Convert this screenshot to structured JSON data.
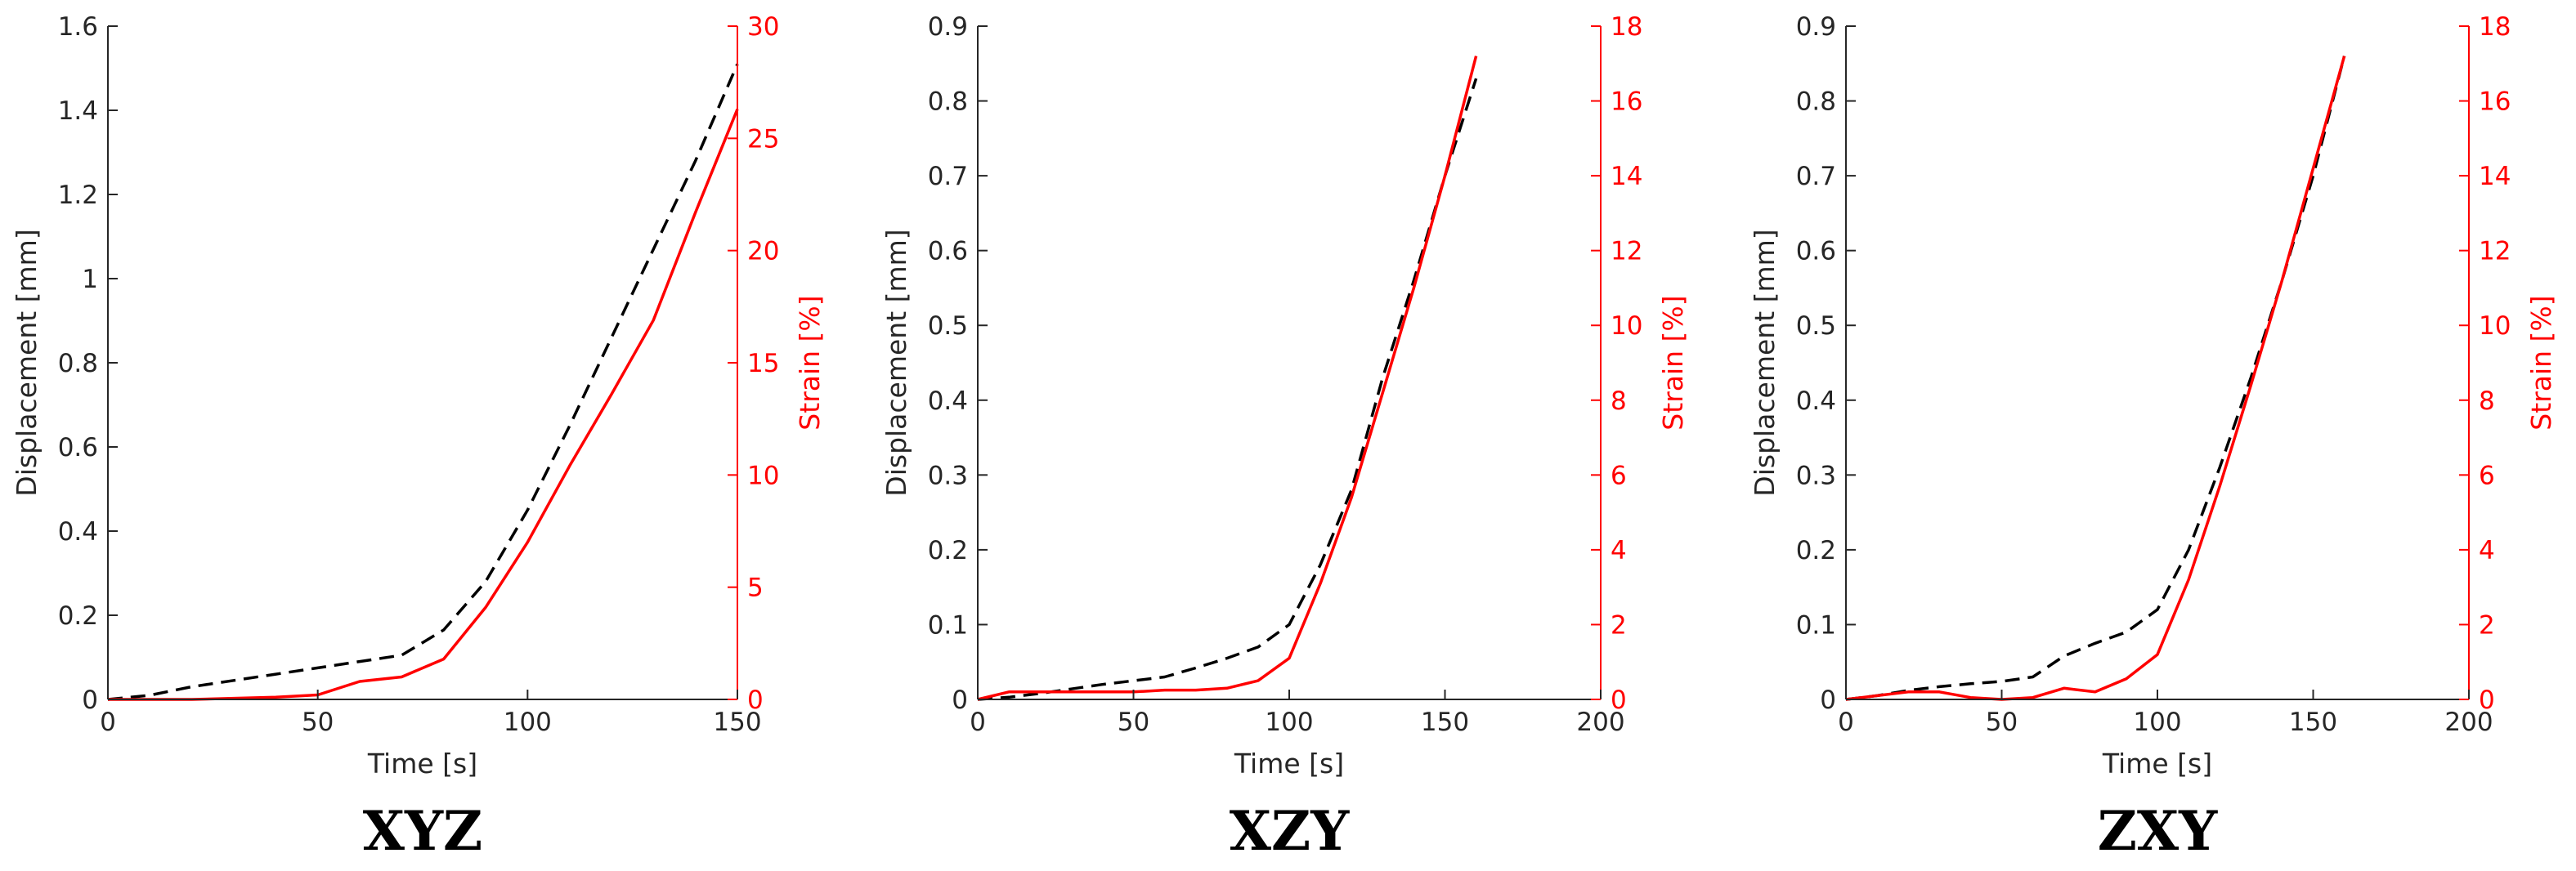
{
  "colors": {
    "displacement": "#000000",
    "strain": "#ff0000",
    "axis_left": "#262626",
    "axis_right": "#ff0000"
  },
  "chart_data": [
    {
      "type": "line",
      "title": "XYZ",
      "xlabel": "Time [s]",
      "ylabel_left": "Displacement [mm]",
      "ylabel_right": "Strain [%]",
      "xlim": [
        0,
        150
      ],
      "ylim_left": [
        0,
        1.6
      ],
      "ylim_right": [
        0,
        30
      ],
      "x_ticks": [
        "0",
        "50",
        "100",
        "150"
      ],
      "y_left_ticks": [
        "0",
        "0.2",
        "0.4",
        "0.6",
        "0.8",
        "1",
        "1.2",
        "1.4",
        "1.6"
      ],
      "y_right_ticks": [
        "0",
        "5",
        "10",
        "15",
        "20",
        "25",
        "30"
      ],
      "grid": false,
      "series": [
        {
          "axis": "left",
          "style": "dashed",
          "color": "#000000",
          "x": [
            0,
            10,
            20,
            30,
            40,
            50,
            60,
            70,
            80,
            90,
            100,
            110,
            120,
            130,
            140,
            150
          ],
          "y": [
            0,
            0.01,
            0.03,
            0.045,
            0.06,
            0.075,
            0.09,
            0.105,
            0.165,
            0.28,
            0.45,
            0.65,
            0.86,
            1.07,
            1.28,
            1.51
          ]
        },
        {
          "axis": "right",
          "style": "solid",
          "color": "#ff0000",
          "x": [
            0,
            10,
            20,
            30,
            40,
            50,
            60,
            70,
            80,
            90,
            100,
            110,
            120,
            130,
            140,
            150
          ],
          "y": [
            0,
            0,
            0,
            0.05,
            0.1,
            0.2,
            0.8,
            1.0,
            1.8,
            4.1,
            7.0,
            10.4,
            13.6,
            16.9,
            21.7,
            26.3
          ]
        }
      ]
    },
    {
      "type": "line",
      "title": "XZY",
      "xlabel": "Time [s]",
      "ylabel_left": "Displacement [mm]",
      "ylabel_right": "Strain [%]",
      "xlim": [
        0,
        200
      ],
      "ylim_left": [
        0,
        0.9
      ],
      "ylim_right": [
        0,
        18
      ],
      "x_ticks": [
        "0",
        "50",
        "100",
        "150",
        "200"
      ],
      "y_left_ticks": [
        "0",
        "0.1",
        "0.2",
        "0.3",
        "0.4",
        "0.5",
        "0.6",
        "0.7",
        "0.8",
        "0.9"
      ],
      "y_right_ticks": [
        "0",
        "2",
        "4",
        "6",
        "8",
        "10",
        "12",
        "14",
        "16",
        "18"
      ],
      "grid": false,
      "series": [
        {
          "axis": "left",
          "style": "dashed",
          "color": "#000000",
          "x": [
            0,
            10,
            20,
            30,
            40,
            50,
            60,
            70,
            80,
            90,
            100,
            110,
            120,
            130,
            140,
            150,
            160
          ],
          "y": [
            0,
            0.003,
            0.008,
            0.014,
            0.02,
            0.025,
            0.03,
            0.042,
            0.055,
            0.07,
            0.1,
            0.18,
            0.28,
            0.43,
            0.56,
            0.7,
            0.83
          ]
        },
        {
          "axis": "right",
          "style": "solid",
          "color": "#ff0000",
          "x": [
            0,
            10,
            20,
            30,
            40,
            50,
            60,
            70,
            80,
            90,
            100,
            110,
            120,
            130,
            140,
            150,
            160
          ],
          "y": [
            0,
            0.2,
            0.2,
            0.2,
            0.2,
            0.2,
            0.25,
            0.25,
            0.3,
            0.5,
            1.1,
            3.1,
            5.4,
            8.2,
            11.0,
            14.0,
            17.2
          ]
        }
      ]
    },
    {
      "type": "line",
      "title": "ZXY",
      "xlabel": "Time [s]",
      "ylabel_left": "Displacement [mm]",
      "ylabel_right": "Strain [%]",
      "xlim": [
        0,
        200
      ],
      "ylim_left": [
        0,
        0.9
      ],
      "ylim_right": [
        0,
        18
      ],
      "x_ticks": [
        "0",
        "50",
        "100",
        "150",
        "200"
      ],
      "y_left_ticks": [
        "0",
        "0.1",
        "0.2",
        "0.3",
        "0.4",
        "0.5",
        "0.6",
        "0.7",
        "0.8",
        "0.9"
      ],
      "y_right_ticks": [
        "0",
        "2",
        "4",
        "6",
        "8",
        "10",
        "12",
        "14",
        "16",
        "18"
      ],
      "grid": false,
      "series": [
        {
          "axis": "left",
          "style": "dashed",
          "color": "#000000",
          "x": [
            0,
            10,
            20,
            30,
            40,
            50,
            60,
            70,
            80,
            90,
            100,
            110,
            120,
            130,
            140,
            150,
            160
          ],
          "y": [
            0,
            0.005,
            0.012,
            0.017,
            0.021,
            0.024,
            0.03,
            0.058,
            0.075,
            0.09,
            0.12,
            0.2,
            0.31,
            0.43,
            0.56,
            0.7,
            0.86
          ]
        },
        {
          "axis": "right",
          "style": "solid",
          "color": "#ff0000",
          "x": [
            0,
            10,
            20,
            30,
            40,
            50,
            60,
            70,
            80,
            90,
            100,
            110,
            120,
            130,
            140,
            150,
            160
          ],
          "y": [
            0,
            0.1,
            0.2,
            0.2,
            0.05,
            0,
            0.05,
            0.3,
            0.2,
            0.55,
            1.2,
            3.2,
            5.7,
            8.4,
            11.2,
            14.2,
            17.2
          ]
        }
      ]
    }
  ]
}
